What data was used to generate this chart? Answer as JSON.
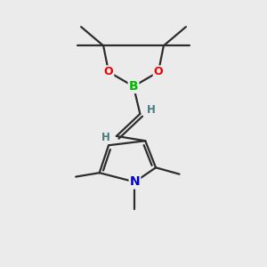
{
  "background_color": "#ebebeb",
  "bond_color": "#2d2d2d",
  "atom_colors": {
    "B": "#00bb00",
    "O": "#ee0000",
    "N": "#0000cc",
    "H": "#4a7a7a"
  },
  "figsize": [
    3.0,
    3.0
  ],
  "dpi": 100
}
